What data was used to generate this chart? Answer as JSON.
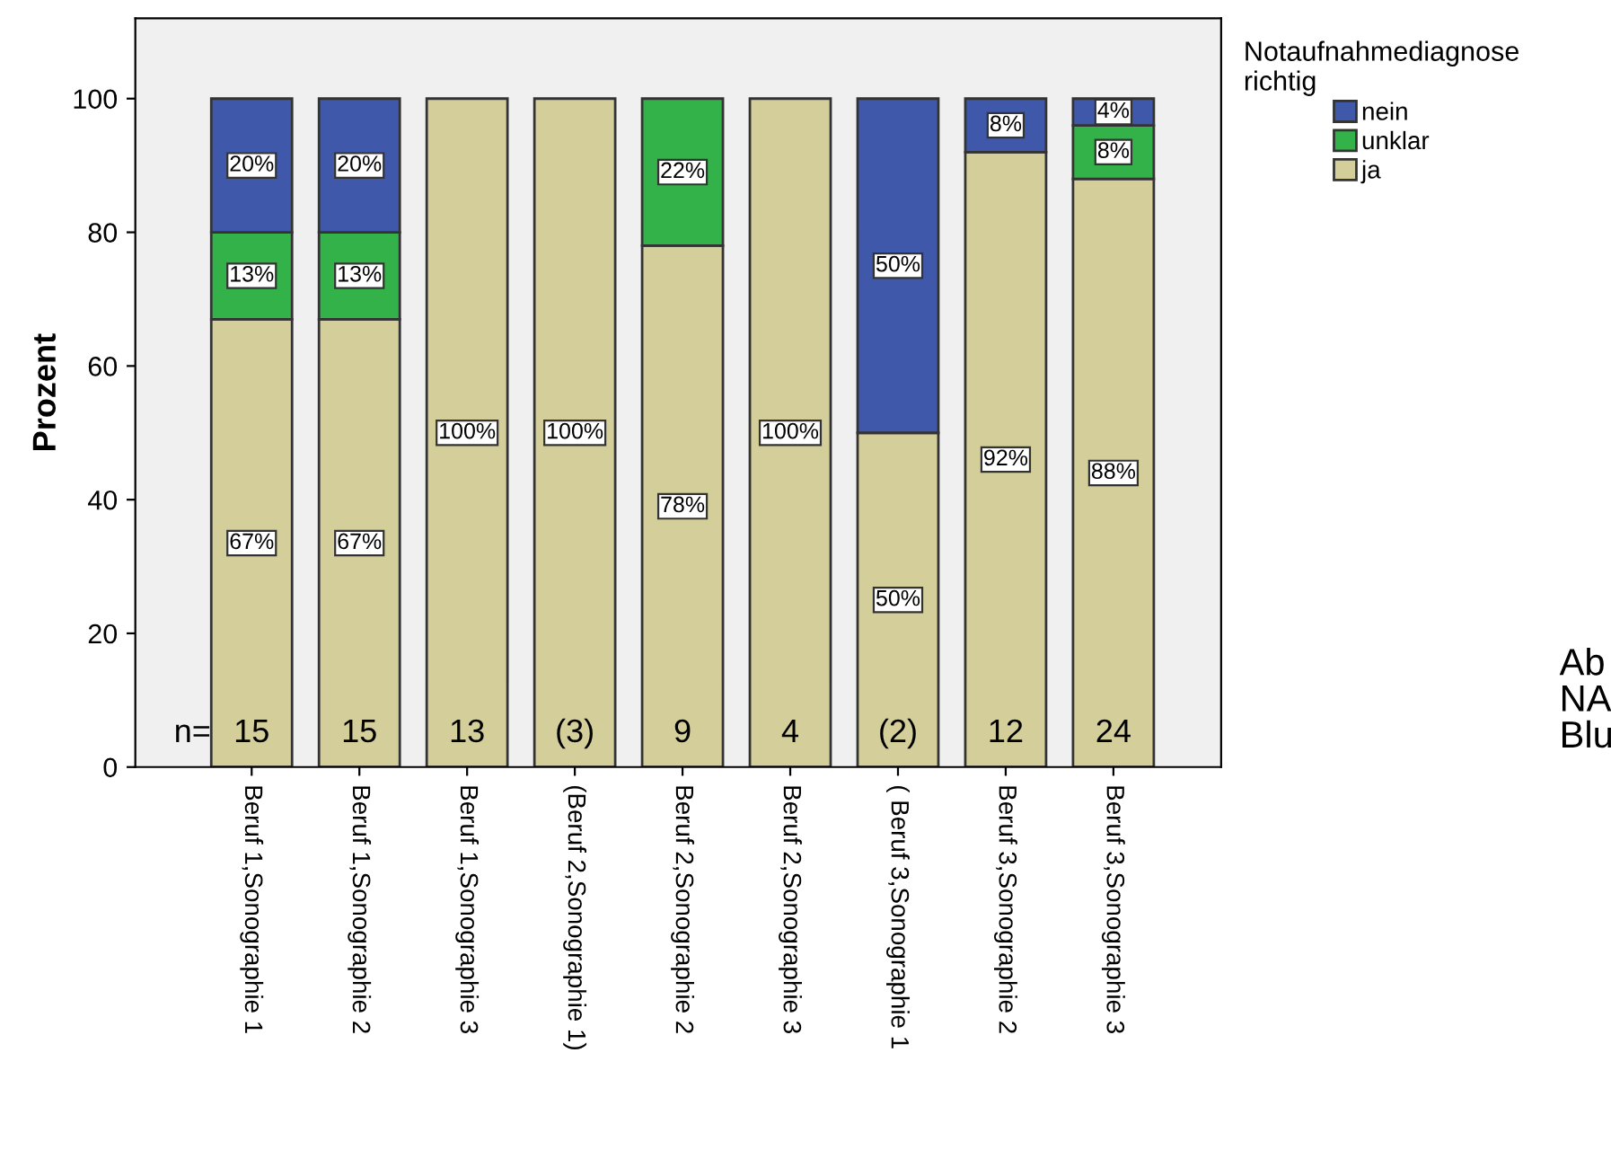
{
  "chart_data": {
    "type": "bar",
    "stacked": true,
    "ylabel": "Prozent",
    "legend_title": "Notaufnahmediagnose\nrichtig",
    "legend": "top right",
    "categories": [
      "Beruf 1,Sonographie 1",
      "Beruf 1,Sonographie 2",
      "Beruf 1,Sonographie 3",
      "(Beruf 2,Sonographie 1)",
      "Beruf 2,Sonographie 2",
      "Beruf 2,Sonographie 3",
      "( Beruf 3,Sonographie 1",
      "Beruf 3,Sonographie 2",
      "Beruf 3,Sonographie 3"
    ],
    "series": [
      {
        "name": "ja",
        "color": "#d4cf9a",
        "values": [
          67,
          67,
          100,
          100,
          78,
          100,
          50,
          92,
          88
        ],
        "value_labels": [
          "67%",
          "67%",
          "100%",
          "100%",
          "78%",
          "100%",
          "50%",
          "92%",
          "88%"
        ]
      },
      {
        "name": "unklar",
        "color": "#33b249",
        "values": [
          13,
          13,
          0,
          0,
          22,
          0,
          0,
          0,
          8
        ],
        "value_labels": [
          "13%",
          "13%",
          null,
          null,
          "22%",
          null,
          null,
          null,
          "8%"
        ]
      },
      {
        "name": "nein",
        "color": "#3f58a9",
        "values": [
          20,
          20,
          0,
          0,
          0,
          0,
          50,
          8,
          4
        ],
        "value_labels": [
          "20%",
          "20%",
          null,
          null,
          null,
          null,
          "50%",
          "8%",
          "4%"
        ]
      }
    ],
    "ylim": [
      0,
      112
    ],
    "yticks": [
      0,
      20,
      40,
      60,
      80,
      100
    ],
    "grid": false,
    "annotations": [
      "n=",
      "15",
      "15",
      "13",
      "(3)",
      "9",
      "4",
      "(2)",
      "12",
      "24",
      "Ab\nNA\nBlu"
    ]
  }
}
